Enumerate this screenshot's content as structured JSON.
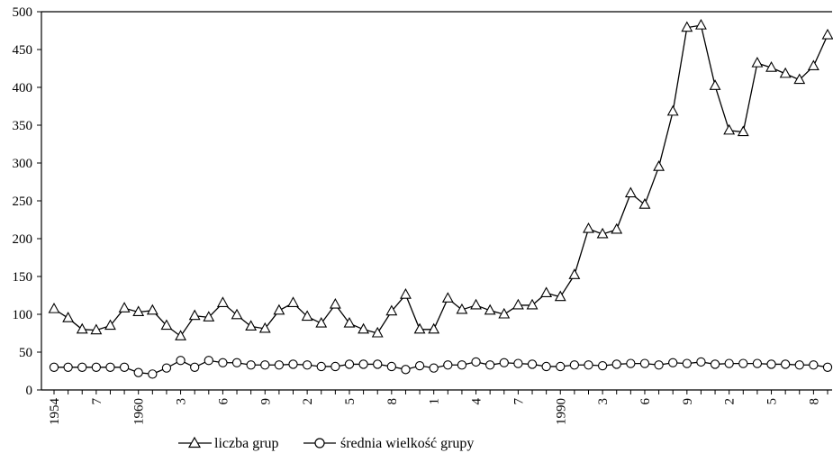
{
  "chart_data": {
    "type": "line",
    "title": "",
    "xlabel": "",
    "ylabel": "",
    "ylim": [
      0,
      500
    ],
    "y_ticks": [
      0,
      50,
      100,
      150,
      200,
      250,
      300,
      350,
      400,
      450,
      500
    ],
    "grid": false,
    "legend_position": "bottom",
    "x": [
      1954,
      1955,
      1956,
      1957,
      1958,
      1959,
      1960,
      1961,
      1962,
      1963,
      1964,
      1965,
      1966,
      1967,
      1968,
      1969,
      1970,
      1971,
      1972,
      1973,
      1974,
      1975,
      1976,
      1977,
      1978,
      1979,
      1980,
      1981,
      1982,
      1983,
      1984,
      1985,
      1986,
      1987,
      1988,
      1989,
      1990,
      1991,
      1992,
      1993,
      1994,
      1995,
      1996,
      1997,
      1998,
      1999,
      2000,
      2001,
      2002,
      2003,
      2004,
      2005,
      2006,
      2007,
      2008,
      2009
    ],
    "x_tick_labels": [
      {
        "x": 1954,
        "label": "1954"
      },
      {
        "x": 1957,
        "label": "7"
      },
      {
        "x": 1960,
        "label": "1960"
      },
      {
        "x": 1963,
        "label": "3"
      },
      {
        "x": 1966,
        "label": "6"
      },
      {
        "x": 1969,
        "label": "9"
      },
      {
        "x": 1972,
        "label": "2"
      },
      {
        "x": 1975,
        "label": "5"
      },
      {
        "x": 1978,
        "label": "8"
      },
      {
        "x": 1981,
        "label": "1"
      },
      {
        "x": 1984,
        "label": "4"
      },
      {
        "x": 1987,
        "label": "7"
      },
      {
        "x": 1990,
        "label": "1990"
      },
      {
        "x": 1993,
        "label": "3"
      },
      {
        "x": 1996,
        "label": "6"
      },
      {
        "x": 1999,
        "label": "9"
      },
      {
        "x": 2002,
        "label": "2"
      },
      {
        "x": 2005,
        "label": "5"
      },
      {
        "x": 2008,
        "label": "8"
      }
    ],
    "series": [
      {
        "name": "liczba grup",
        "marker": "triangle",
        "values": [
          107,
          95,
          80,
          79,
          85,
          108,
          103,
          105,
          85,
          71,
          98,
          96,
          115,
          99,
          84,
          81,
          105,
          115,
          97,
          88,
          113,
          88,
          80,
          75,
          104,
          126,
          80,
          80,
          121,
          106,
          112,
          105,
          100,
          112,
          112,
          128,
          123,
          152,
          213,
          206,
          212,
          260,
          245,
          295,
          368,
          479,
          482,
          402,
          343,
          341,
          432,
          426,
          418,
          410,
          428,
          469
        ]
      },
      {
        "name": "średnia wielkość grupy",
        "marker": "circle",
        "values": [
          30,
          30,
          30,
          30,
          30,
          30,
          23,
          21,
          29,
          39,
          30,
          39,
          36,
          36,
          33,
          33,
          33,
          34,
          33,
          31,
          31,
          34,
          34,
          34,
          31,
          27,
          32,
          29,
          33,
          33,
          37,
          33,
          36,
          35,
          34,
          31,
          31,
          33,
          33,
          32,
          34,
          35,
          35,
          33,
          36,
          35,
          37,
          34,
          35,
          35,
          35,
          34,
          34,
          33,
          33,
          30
        ]
      }
    ]
  }
}
